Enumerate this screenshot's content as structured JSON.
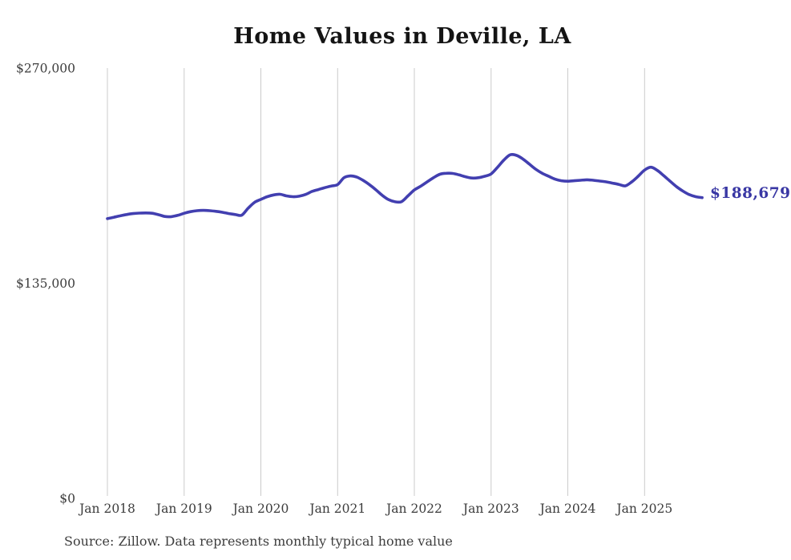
{
  "title": "Home Values in Deville, LA",
  "source_note": "Source: Zillow. Data represents monthly typical home value",
  "colors": {
    "line": "#423fb0",
    "end_label": "#3937a4",
    "gridline": "#cbcbcb",
    "title_text": "#141414",
    "axis_text": "#3c3c3c",
    "source_text": "#3d3d3d",
    "background": "#ffffff"
  },
  "chart_data": {
    "type": "line",
    "title": "Home Values in Deville, LA",
    "xlabel": "",
    "ylabel": "",
    "ylim": [
      0,
      270000
    ],
    "grid": "vertical-only",
    "legend": "none",
    "x_tick_labels": [
      "Jan 2018",
      "Jan 2019",
      "Jan 2020",
      "Jan 2021",
      "Jan 2022",
      "Jan 2023",
      "Jan 2024",
      "Jan 2025"
    ],
    "y_tick_labels": [
      "$0",
      "$135,000",
      "$270,000"
    ],
    "y_tick_values": [
      0,
      135000,
      270000
    ],
    "series": [
      {
        "name": "Monthly typical home value",
        "start_month": "2018-01",
        "end_month": "2025-10",
        "months_per_point": 1,
        "final_value": 188679,
        "final_value_label": "$188,679",
        "values": [
          175500,
          176400,
          177300,
          178100,
          178700,
          179000,
          179100,
          178900,
          178000,
          176900,
          176800,
          177600,
          178900,
          179900,
          180500,
          180700,
          180500,
          180100,
          179500,
          178700,
          178100,
          177700,
          182000,
          185700,
          187600,
          189300,
          190400,
          190800,
          189800,
          189300,
          189600,
          190700,
          192600,
          193800,
          195000,
          196000,
          196900,
          201200,
          202300,
          201600,
          199500,
          196800,
          193600,
          190100,
          187400,
          186100,
          186200,
          189800,
          193500,
          195900,
          198600,
          201200,
          203400,
          204000,
          203900,
          203000,
          201800,
          201000,
          201200,
          202100,
          203600,
          207700,
          212300,
          215600,
          215200,
          212900,
          209700,
          206500,
          204000,
          202100,
          200300,
          199300,
          199000,
          199300,
          199600,
          199900,
          199600,
          199100,
          198600,
          197800,
          197000,
          196100,
          198600,
          202100,
          206000,
          207800,
          205800,
          202500,
          199000,
          195600,
          192800,
          190600,
          189300,
          188679
        ]
      }
    ]
  }
}
